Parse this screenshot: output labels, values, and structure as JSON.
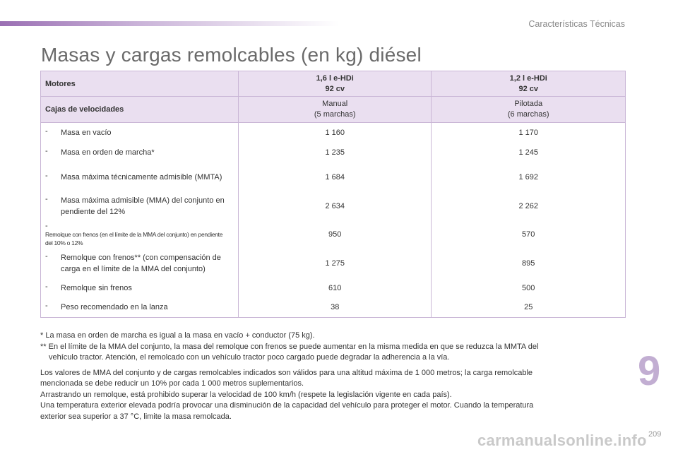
{
  "header": {
    "section_title": "Características Técnicas",
    "page_title": "Masas y cargas remolcables (en kg) diésel"
  },
  "table": {
    "engines_label": "Motores",
    "engines": [
      {
        "line1": "1,6 l e-HDi",
        "line2": "92 cv"
      },
      {
        "line1": "1,2 l e-HDi",
        "line2": "92 cv"
      }
    ],
    "gearbox_label": "Cajas de velocidades",
    "gearboxes": [
      {
        "line1": "Manual",
        "line2": "(5 marchas)"
      },
      {
        "line1": "Pilotada",
        "line2": "(6 marchas)"
      }
    ],
    "rows": [
      {
        "dash": "-",
        "label": "Masa en vacío",
        "values": [
          "1 160",
          "1 170"
        ]
      },
      {
        "dash": "-",
        "label": "Masa en orden de marcha*",
        "values": [
          "1 235",
          "1 245"
        ]
      },
      {
        "dash": "-",
        "label": "Masa máxima técnicamente admisible (MMTA)",
        "values": [
          "1 684",
          "1 692"
        ]
      },
      {
        "dash": "-",
        "label": "Masa máxima admisible (MMA) del conjunto en pendiente del 12%",
        "values": [
          "2 634",
          "2 262"
        ]
      },
      {
        "dash": "-",
        "label": "Remolque con frenos (en el límite de la MMA del conjunto) en pendiente del 10% o 12%",
        "values": [
          "950",
          "570"
        ]
      },
      {
        "dash": "-",
        "label": "Remolque con frenos** (con compensación de carga en el límite de la MMA del conjunto)",
        "values": [
          "1 275",
          "895"
        ]
      },
      {
        "dash": "-",
        "label": "Remolque sin frenos",
        "values": [
          "610",
          "500"
        ]
      },
      {
        "dash": "-",
        "label": "Peso recomendado en la lanza",
        "values": [
          "38",
          "25"
        ]
      }
    ]
  },
  "notes": {
    "footnote1": "* La masa en orden de marcha es igual a la masa en vacío + conductor (75 kg).",
    "footnote2_line1": "** En el límite de la MMA del conjunto, la masa del remolque con frenos se puede aumentar en la misma medida en que se reduzca la MMTA del",
    "footnote2_line2": "vehículo tractor. Atención, el remolcado con un vehículo tractor poco cargado puede degradar la adherencia a la vía.",
    "para1_line1": "Los valores de MMA del conjunto y de cargas remolcables indicados son válidos para una altitud máxima de 1 000 metros; la carga remolcable",
    "para1_line2": "mencionada se debe reducir un 10% por cada 1 000 metros suplementarios.",
    "para2": "Arrastrando un remolque, está prohibido superar la velocidad de 100 km/h (respete la legislación vigente en cada país).",
    "para3_line1": "Una temperatura exterior elevada podría provocar una disminución de la capacidad del vehículo para proteger el motor. Cuando la temperatura",
    "para3_line2": "exterior sea superior a 37 °C, limite la masa remolcada."
  },
  "chapter_number": "9",
  "page_number": "209",
  "watermark": "carmanualsonline.info",
  "colors": {
    "accent": "#9a6fb3",
    "header_fill": "#eadff0",
    "border": "#c9b6d6",
    "chapter": "#c2aed2"
  }
}
